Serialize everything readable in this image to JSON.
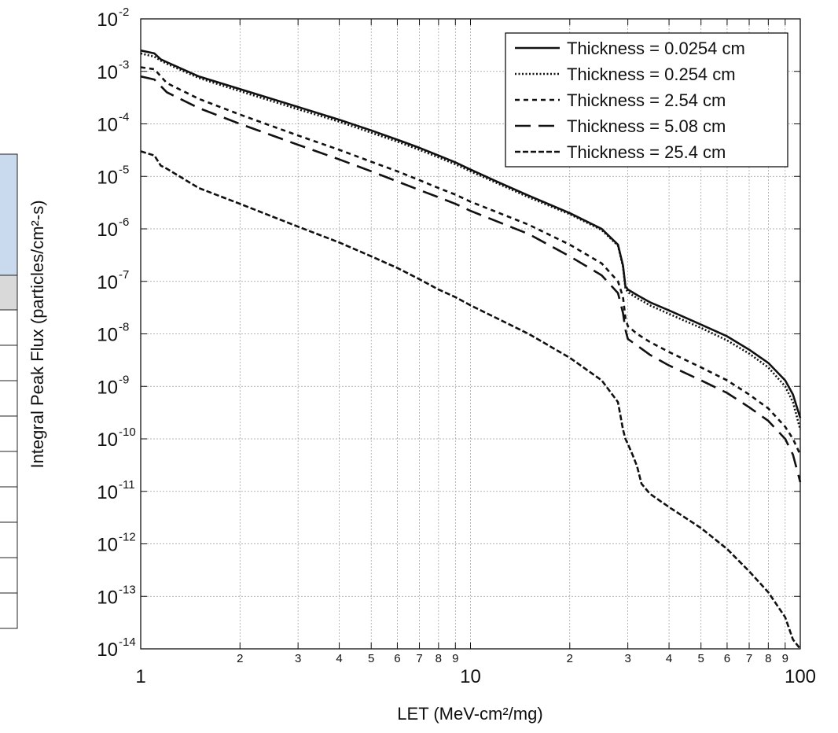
{
  "chart_data": {
    "type": "line",
    "xlabel": "LET (MeV-cm²/mg)",
    "ylabel": "Integral Peak Flux (particles/cm²-s)",
    "x_scale": "log",
    "y_scale": "log",
    "xlim": [
      1,
      100
    ],
    "ylim": [
      1e-14,
      0.01
    ],
    "grid": true,
    "legend_position": "top-right",
    "x_tick_labels_major": [
      "1",
      "10",
      "100"
    ],
    "x_tick_labels_minor": [
      "2",
      "3",
      "4",
      "5",
      "6",
      "7",
      "8",
      "9"
    ],
    "y_tick_labels": [
      {
        "base": "10",
        "exp": "-2"
      },
      {
        "base": "10",
        "exp": "-3"
      },
      {
        "base": "10",
        "exp": "-4"
      },
      {
        "base": "10",
        "exp": "-5"
      },
      {
        "base": "10",
        "exp": "-6"
      },
      {
        "base": "10",
        "exp": "-7"
      },
      {
        "base": "10",
        "exp": "-8"
      },
      {
        "base": "10",
        "exp": "-9"
      },
      {
        "base": "10",
        "exp": "-10"
      },
      {
        "base": "10",
        "exp": "-11"
      },
      {
        "base": "10",
        "exp": "-12"
      },
      {
        "base": "10",
        "exp": "-13"
      },
      {
        "base": "10",
        "exp": "-14"
      }
    ],
    "series": [
      {
        "name": "Thickness = 0.0254 cm",
        "line_style": "solid",
        "x": [
          1,
          1.1,
          1.15,
          1.2,
          1.5,
          2,
          3,
          4,
          5,
          6,
          7,
          8,
          9,
          10,
          12,
          15,
          20,
          25,
          28,
          29,
          29.5,
          30,
          32,
          35,
          40,
          50,
          60,
          70,
          80,
          90,
          95,
          100
        ],
        "y": [
          0.0025,
          0.0022,
          0.0017,
          0.0015,
          0.0008,
          0.00046,
          0.00021,
          0.00012,
          7.5e-05,
          5e-05,
          3.5e-05,
          2.5e-05,
          1.85e-05,
          1.35e-05,
          8e-06,
          4.3e-06,
          2e-06,
          1e-06,
          5e-07,
          2e-07,
          8e-08,
          7e-08,
          5.5e-08,
          4e-08,
          2.8e-08,
          1.5e-08,
          9e-09,
          5e-09,
          2.8e-09,
          1.3e-09,
          7e-10,
          2.5e-10
        ]
      },
      {
        "name": "Thickness = 0.254 cm",
        "line_style": "dotted",
        "x": [
          1,
          1.1,
          1.15,
          1.2,
          1.5,
          2,
          3,
          4,
          5,
          6,
          7,
          8,
          9,
          10,
          12,
          15,
          20,
          25,
          28,
          29,
          29.5,
          30,
          32,
          35,
          40,
          50,
          60,
          70,
          80,
          90,
          95,
          100
        ],
        "y": [
          0.0022,
          0.0019,
          0.0016,
          0.0014,
          0.00075,
          0.00042,
          0.00019,
          0.00011,
          6.8e-05,
          4.6e-05,
          3.2e-05,
          2.3e-05,
          1.7e-05,
          1.25e-05,
          7.5e-06,
          4e-06,
          1.9e-06,
          9.5e-07,
          4.8e-07,
          1.9e-07,
          7.5e-08,
          6.2e-08,
          4.8e-08,
          3.5e-08,
          2.4e-08,
          1.3e-08,
          7.5e-09,
          4.2e-09,
          2.3e-09,
          1e-09,
          5e-10,
          1.5e-10
        ]
      },
      {
        "name": "Thickness = 2.54 cm",
        "line_style": "short-dash",
        "x": [
          1,
          1.1,
          1.2,
          1.5,
          2,
          3,
          4,
          5,
          6,
          7,
          8,
          9,
          10,
          15,
          20,
          25,
          28,
          29,
          29.5,
          30,
          32,
          35,
          40,
          50,
          60,
          70,
          80,
          90,
          95,
          100
        ],
        "y": [
          0.0012,
          0.0011,
          0.0006,
          0.0003,
          0.00015,
          6e-05,
          3.2e-05,
          1.9e-05,
          1.25e-05,
          8.5e-06,
          6e-06,
          4.5e-06,
          3.3e-06,
          1.2e-06,
          5e-07,
          2.2e-07,
          1e-07,
          5e-08,
          2e-08,
          1.4e-08,
          1e-08,
          7e-09,
          4.5e-09,
          2.3e-09,
          1.3e-09,
          7e-10,
          3.8e-10,
          1.7e-10,
          1e-10,
          5e-11
        ]
      },
      {
        "name": "Thickness = 5.08 cm",
        "line_style": "long-dash",
        "x": [
          1,
          1.1,
          1.2,
          1.5,
          2,
          3,
          4,
          5,
          6,
          7,
          8,
          9,
          10,
          15,
          20,
          25,
          28,
          29,
          29.5,
          30,
          32,
          35,
          40,
          50,
          60,
          70,
          80,
          90,
          95,
          100
        ],
        "y": [
          0.0008,
          0.0007,
          0.0004,
          0.0002,
          0.0001,
          4e-05,
          2.1e-05,
          1.25e-05,
          8e-06,
          5.5e-06,
          4e-06,
          3e-06,
          2.2e-06,
          8e-07,
          3e-07,
          1.3e-07,
          6e-08,
          2.5e-08,
          1.2e-08,
          8e-09,
          6e-09,
          4e-09,
          2.5e-09,
          1.3e-09,
          7.5e-10,
          4e-10,
          2.2e-10,
          1e-10,
          5e-11,
          1.5e-11
        ]
      },
      {
        "name": "Thickness = 25.4 cm",
        "line_style": "dash",
        "x": [
          1,
          1.1,
          1.15,
          1.2,
          1.5,
          2,
          3,
          4,
          5,
          6,
          7,
          8,
          9,
          10,
          15,
          20,
          25,
          28,
          29,
          29.5,
          30,
          31,
          32,
          33,
          35,
          40,
          50,
          60,
          70,
          80,
          90,
          95,
          100
        ],
        "y": [
          3e-05,
          2.5e-05,
          1.6e-05,
          1.4e-05,
          6e-06,
          3e-06,
          1.1e-06,
          5.5e-07,
          3e-07,
          1.8e-07,
          1.1e-07,
          7e-08,
          5e-08,
          3.5e-08,
          1e-08,
          3.5e-09,
          1.3e-09,
          5e-10,
          1.5e-10,
          1e-10,
          8e-11,
          5e-11,
          3e-11,
          1.4e-11,
          9e-12,
          5e-12,
          2e-12,
          8e-13,
          3e-13,
          1.2e-13,
          4e-14,
          1.5e-14,
          4e-15
        ]
      }
    ]
  },
  "side_table": {
    "header_color": "#c9daef",
    "row_color": "#d9d9d9"
  }
}
